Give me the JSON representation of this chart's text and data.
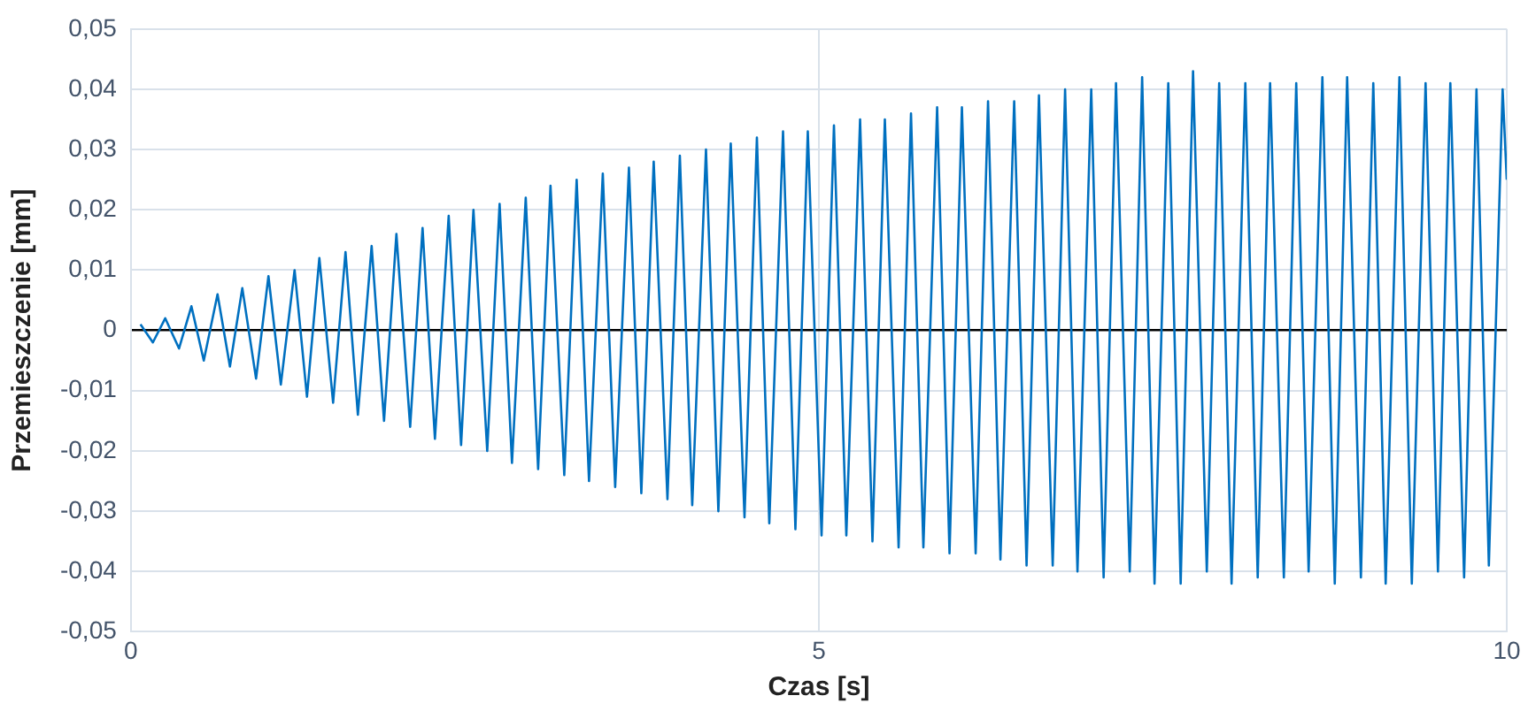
{
  "chart_data": {
    "type": "line",
    "xlabel": "Czas [s]",
    "ylabel": "Przemieszczenie [mm]",
    "x": [
      0.07,
      0.16,
      0.25,
      0.35,
      0.44,
      0.53,
      0.63,
      0.72,
      0.81,
      0.91,
      1.0,
      1.09,
      1.19,
      1.28,
      1.37,
      1.47,
      1.56,
      1.65,
      1.75,
      1.84,
      1.93,
      2.03,
      2.12,
      2.21,
      2.31,
      2.4,
      2.49,
      2.59,
      2.68,
      2.77,
      2.87,
      2.96,
      3.05,
      3.15,
      3.24,
      3.33,
      3.43,
      3.52,
      3.62,
      3.71,
      3.8,
      3.9,
      3.99,
      4.08,
      4.18,
      4.27,
      4.36,
      4.46,
      4.55,
      4.64,
      4.74,
      4.83,
      4.92,
      5.02,
      5.11,
      5.2,
      5.3,
      5.39,
      5.48,
      5.58,
      5.67,
      5.76,
      5.86,
      5.95,
      6.04,
      6.14,
      6.23,
      6.32,
      6.42,
      6.51,
      6.6,
      6.7,
      6.79,
      6.88,
      6.98,
      7.07,
      7.16,
      7.26,
      7.35,
      7.44,
      7.54,
      7.63,
      7.72,
      7.82,
      7.91,
      8.0,
      8.1,
      8.19,
      8.28,
      8.38,
      8.47,
      8.56,
      8.66,
      8.75,
      8.84,
      8.94,
      9.03,
      9.12,
      9.22,
      9.31,
      9.41,
      9.5,
      9.59,
      9.69,
      9.78,
      9.87,
      9.97,
      10
    ],
    "series": [
      {
        "color": "#0070c0",
        "values": [
          0.001,
          -0.002,
          0.002,
          -0.003,
          0.004,
          -0.005,
          0.006,
          -0.006,
          0.007,
          -0.008,
          0.009,
          -0.009,
          0.01,
          -0.011,
          0.012,
          -0.012,
          0.013,
          -0.014,
          0.014,
          -0.015,
          0.016,
          -0.016,
          0.017,
          -0.018,
          0.019,
          -0.019,
          0.02,
          -0.02,
          0.021,
          -0.022,
          0.022,
          -0.023,
          0.024,
          -0.024,
          0.025,
          -0.025,
          0.026,
          -0.026,
          0.027,
          -0.027,
          0.028,
          -0.028,
          0.029,
          -0.029,
          0.03,
          -0.03,
          0.031,
          -0.031,
          0.032,
          -0.032,
          0.033,
          -0.033,
          0.033,
          -0.034,
          0.034,
          -0.034,
          0.035,
          -0.035,
          0.035,
          -0.036,
          0.036,
          -0.036,
          0.037,
          -0.037,
          0.037,
          -0.037,
          0.038,
          -0.038,
          0.038,
          -0.039,
          0.039,
          -0.039,
          0.04,
          -0.04,
          0.04,
          -0.041,
          0.041,
          -0.04,
          0.042,
          -0.042,
          0.041,
          -0.042,
          0.043,
          -0.04,
          0.041,
          -0.042,
          0.041,
          -0.041,
          0.041,
          -0.041,
          0.041,
          -0.04,
          0.042,
          -0.042,
          0.042,
          -0.041,
          0.041,
          -0.042,
          0.042,
          -0.042,
          0.041,
          -0.04,
          0.041,
          -0.041,
          0.04,
          -0.039,
          0.04,
          0.025
        ]
      }
    ],
    "xlim": [
      0,
      10
    ],
    "xticks": [
      0,
      5,
      10
    ],
    "ylim": [
      -0.05,
      0.05
    ],
    "yticks": [
      {
        "value": -0.05,
        "label": "-0,05"
      },
      {
        "value": -0.04,
        "label": "-0,04"
      },
      {
        "value": -0.03,
        "label": "-0,03"
      },
      {
        "value": -0.02,
        "label": "-0,02"
      },
      {
        "value": -0.01,
        "label": "-0,01"
      },
      {
        "value": 0,
        "label": "0"
      },
      {
        "value": 0.01,
        "label": "0,01"
      },
      {
        "value": 0.02,
        "label": "0,02"
      },
      {
        "value": 0.03,
        "label": "0,03"
      },
      {
        "value": 0.04,
        "label": "0,04"
      },
      {
        "value": 0.05,
        "label": "0,05"
      }
    ],
    "grid": true,
    "legend": false,
    "marker": "none",
    "line_style": "solid"
  }
}
